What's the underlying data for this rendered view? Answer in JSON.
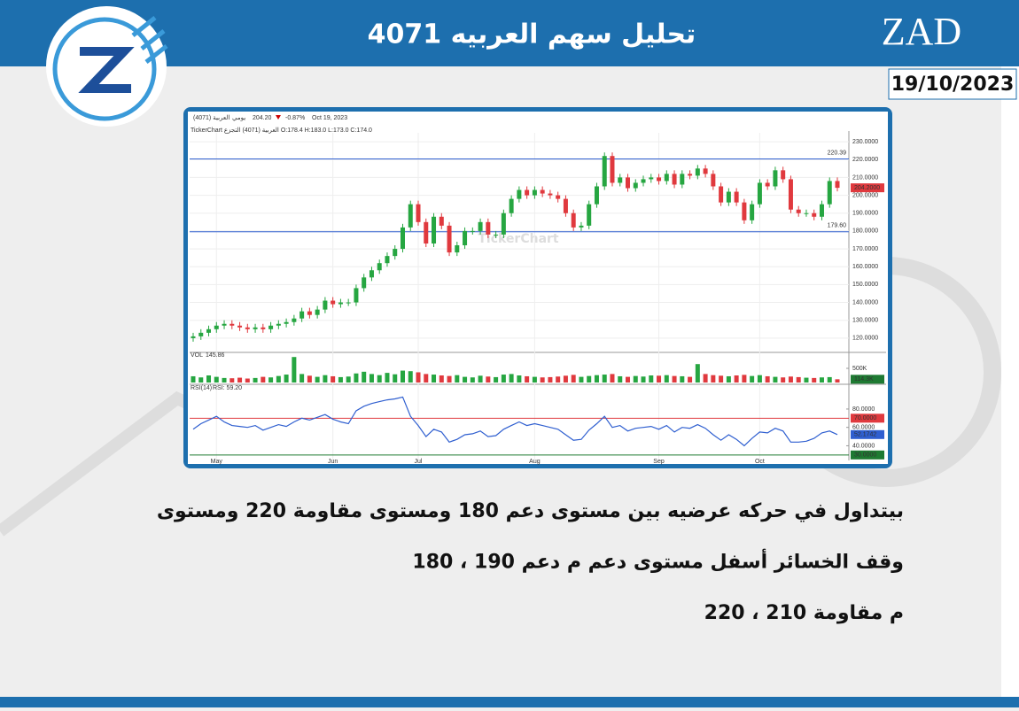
{
  "header": {
    "title": "تحليل سهم العربيه 4071",
    "brand": "ZAD",
    "date": "19/10/2023"
  },
  "chart_data": {
    "type": "candlestick",
    "symbol": "العربية (4071)",
    "period": "يومي",
    "price": "204.20",
    "change": "-0.87%",
    "date": "Oct 19, 2023",
    "info": "TickerChart العربية (4071) التجزع O:178.4 H:183.0 L:173.0 C:174.0",
    "watermark": "TickerChart",
    "categories": [
      null,
      null,
      null,
      "May",
      null,
      null,
      null,
      null,
      null,
      null,
      null,
      null,
      null,
      null,
      null,
      null,
      null,
      null,
      "Jun",
      null,
      null,
      null,
      null,
      null,
      null,
      null,
      null,
      null,
      null,
      "Jul",
      null,
      null,
      null,
      null,
      null,
      null,
      null,
      null,
      null,
      null,
      null,
      null,
      null,
      null,
      "Aug",
      null,
      null,
      null,
      null,
      null,
      null,
      null,
      null,
      null,
      null,
      null,
      null,
      null,
      null,
      null,
      "Sep",
      null,
      null,
      null,
      null,
      null,
      null,
      null,
      null,
      null,
      null,
      null,
      null,
      "Oct",
      null,
      null,
      null,
      null,
      null,
      null,
      null,
      null,
      null,
      null
    ],
    "open": [
      120,
      121,
      123,
      125,
      127,
      128,
      127,
      126,
      125,
      126,
      125,
      127,
      128,
      129,
      131,
      135,
      133,
      136,
      141,
      139,
      140,
      140,
      148,
      154,
      158,
      162,
      166,
      170,
      182,
      195,
      185,
      173,
      188,
      183,
      168,
      172,
      180,
      180,
      185,
      178,
      178,
      190,
      198,
      203,
      200,
      203,
      201,
      200,
      198,
      190,
      182,
      183,
      195,
      205,
      222,
      207,
      210,
      204,
      207,
      209,
      210,
      208,
      212,
      206,
      212,
      211,
      215,
      212,
      205,
      196,
      202,
      196,
      186,
      195,
      207,
      205,
      214,
      209,
      192,
      190,
      190,
      188,
      195,
      208
    ],
    "high": [
      123,
      125,
      127,
      129,
      130,
      130,
      129,
      128,
      128,
      128,
      129,
      130,
      131,
      133,
      137,
      137,
      138,
      143,
      143,
      142,
      142,
      150,
      156,
      160,
      164,
      168,
      172,
      184,
      197,
      197,
      187,
      190,
      190,
      185,
      174,
      182,
      182,
      187,
      187,
      180,
      192,
      200,
      205,
      205,
      205,
      205,
      203,
      202,
      200,
      192,
      185,
      197,
      207,
      224,
      224,
      212,
      212,
      209,
      211,
      212,
      212,
      214,
      214,
      214,
      214,
      217,
      217,
      214,
      207,
      204,
      204,
      198,
      197,
      209,
      209,
      216,
      216,
      211,
      194,
      192,
      192,
      197,
      210,
      210
    ],
    "low": [
      118,
      119,
      121,
      123,
      125,
      125,
      124,
      123,
      123,
      123,
      123,
      125,
      126,
      127,
      129,
      131,
      131,
      134,
      137,
      137,
      138,
      138,
      146,
      152,
      156,
      160,
      164,
      168,
      180,
      183,
      171,
      171,
      181,
      166,
      166,
      170,
      178,
      178,
      176,
      176,
      176,
      188,
      196,
      198,
      198,
      199,
      198,
      196,
      188,
      180,
      180,
      181,
      193,
      203,
      205,
      205,
      202,
      202,
      205,
      207,
      206,
      206,
      204,
      204,
      209,
      209,
      210,
      203,
      194,
      194,
      194,
      184,
      184,
      193,
      203,
      203,
      207,
      190,
      188,
      188,
      186,
      186,
      193,
      202.2
    ],
    "close": [
      121,
      123,
      125,
      127,
      128,
      127,
      126,
      125,
      126,
      125,
      127,
      128,
      129,
      131,
      135,
      133,
      136,
      141,
      139,
      140,
      140,
      148,
      154,
      158,
      162,
      166,
      170,
      182,
      195,
      185,
      173,
      188,
      183,
      168,
      172,
      180,
      180,
      185,
      178,
      178,
      190,
      198,
      203,
      200,
      203,
      201,
      200,
      198,
      190,
      182,
      183,
      195,
      205,
      222,
      207,
      210,
      204,
      207,
      209,
      210,
      208,
      212,
      206,
      212,
      211,
      215,
      212,
      205,
      196,
      202,
      196,
      186,
      195,
      207,
      205,
      214,
      209,
      192,
      190,
      190,
      188,
      195,
      208,
      204.2
    ],
    "close_last_label": "204.2000",
    "up_color": "#26a641",
    "down_color": "#e0393e",
    "ylim": [
      113,
      235
    ],
    "yticks": [
      {
        "value": 120,
        "label": "120.0000"
      },
      {
        "value": 130,
        "label": "130.0000"
      },
      {
        "value": 140,
        "label": "140.0000"
      },
      {
        "value": 150,
        "label": "150.0000"
      },
      {
        "value": 160,
        "label": "160.0000"
      },
      {
        "value": 170,
        "label": "170.0000"
      },
      {
        "value": 180,
        "label": "180.0000"
      },
      {
        "value": 190,
        "label": "190.0000"
      },
      {
        "value": 200,
        "label": "200.0000"
      },
      {
        "value": 210,
        "label": "210.0000"
      },
      {
        "value": 220,
        "label": "220.0000"
      },
      {
        "value": 230,
        "label": "230.0000"
      }
    ],
    "levels": [
      {
        "value": 220.39,
        "label": "220.39"
      },
      {
        "value": 179.6,
        "label": "179.60"
      }
    ],
    "level_color": "#2f5fd0",
    "volume_title": "VOL",
    "volume_info": "145.86",
    "volume": [
      220000,
      180000,
      250000,
      200000,
      160000,
      150000,
      170000,
      140000,
      160000,
      200000,
      180000,
      230000,
      280000,
      900000,
      300000,
      240000,
      200000,
      260000,
      220000,
      190000,
      210000,
      320000,
      380000,
      300000,
      260000,
      340000,
      290000,
      420000,
      400000,
      360000,
      300000,
      280000,
      250000,
      230000,
      260000,
      200000,
      180000,
      240000,
      210000,
      190000,
      280000,
      300000,
      250000,
      220000,
      200000,
      180000,
      190000,
      210000,
      240000,
      270000,
      200000,
      230000,
      260000,
      280000,
      300000,
      220000,
      200000,
      230000,
      210000,
      250000,
      240000,
      260000,
      230000,
      220000,
      200000,
      650000,
      300000,
      260000,
      240000,
      220000,
      250000,
      270000,
      230000,
      260000,
      220000,
      200000,
      180000,
      210000,
      190000,
      170000,
      160000,
      180000,
      190000,
      114300
    ],
    "volume_last_label": "114.3K",
    "vlim": [
      0,
      1000000
    ],
    "vticks": [
      {
        "value": 500000,
        "label": "500K"
      }
    ],
    "rsi_title": "RSI(14)",
    "rsi_info": "RSI: 59.20",
    "rsi": [
      58,
      64,
      68,
      72,
      66,
      62,
      61,
      60,
      62,
      57,
      60,
      63,
      61,
      66,
      70,
      68,
      71,
      74,
      69,
      66,
      64,
      78,
      83,
      86,
      88,
      90,
      91,
      93,
      72,
      62,
      50,
      58,
      55,
      44,
      47,
      52,
      53,
      56,
      50,
      51,
      58,
      62,
      66,
      62,
      64,
      62,
      60,
      58,
      52,
      46,
      47,
      57,
      64,
      72,
      60,
      62,
      56,
      59,
      60,
      61,
      58,
      62,
      55,
      60,
      59,
      63,
      59,
      52,
      46,
      52,
      47,
      40,
      48,
      55,
      54,
      59,
      56,
      44,
      44,
      45,
      48,
      54,
      56,
      52.1742
    ],
    "rsi_last_label": "52.1742",
    "rsi_color": "#2f5fd0",
    "rlim": [
      25,
      105
    ],
    "rticks": [
      {
        "value": 80,
        "label": "80.0000"
      },
      {
        "value": 70,
        "label": "70.0000"
      },
      {
        "value": 60,
        "label": "60.0000"
      },
      {
        "value": 40,
        "label": "40.0000"
      },
      {
        "value": 30,
        "label": "30.0000"
      }
    ]
  },
  "body": {
    "lines": [
      "بيتداول في حركه عرضيه بين مستوى دعم 180 ومستوى مقاومة 220 ومستوى",
      "وقف الخسائر أسفل مستوى دعم م دعم 190 ، 180",
      "م مقاومة 210 ، 220"
    ]
  }
}
